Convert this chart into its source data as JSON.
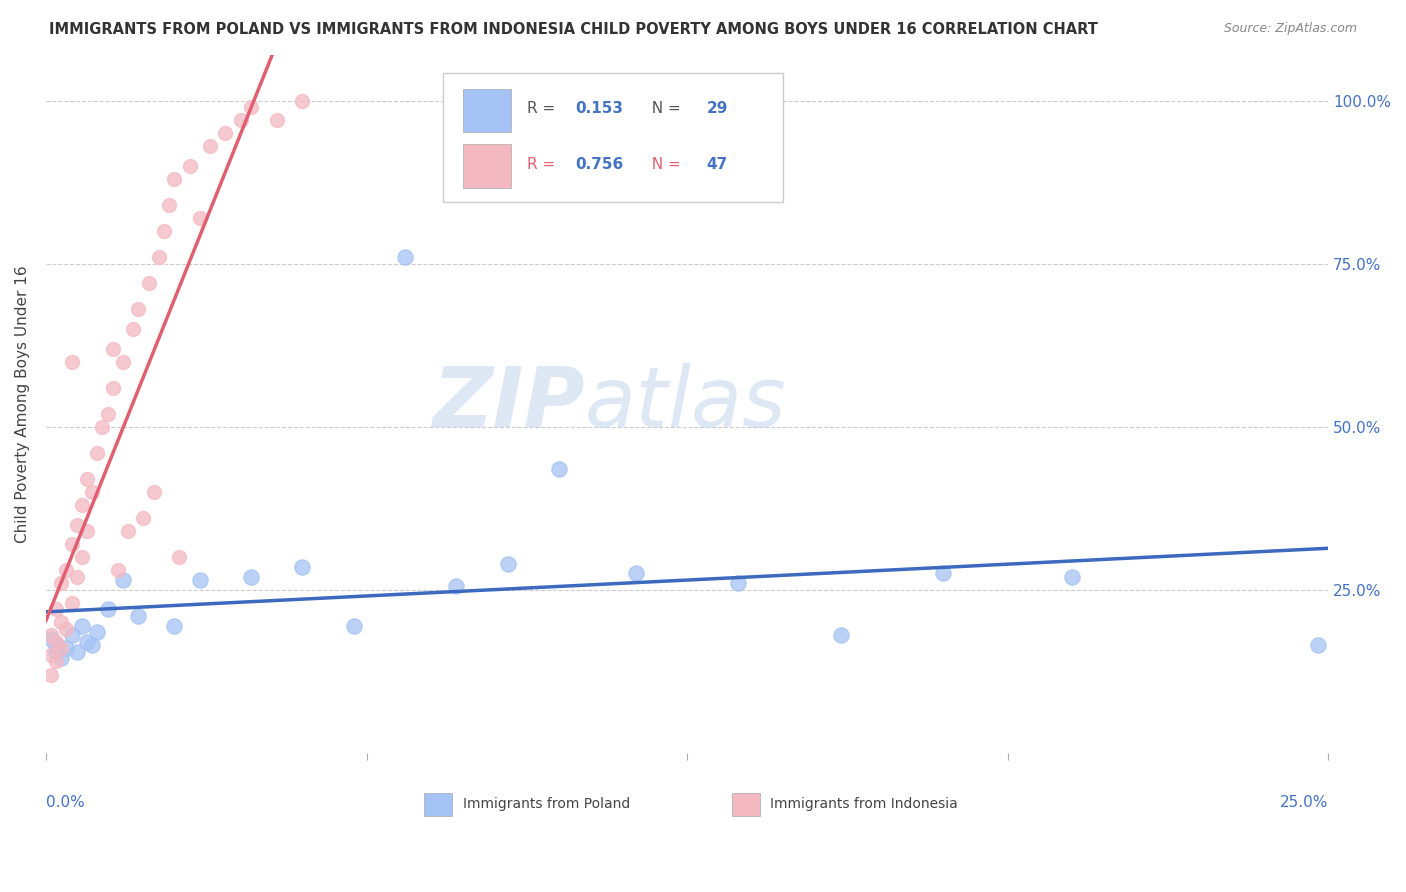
{
  "title": "IMMIGRANTS FROM POLAND VS IMMIGRANTS FROM INDONESIA CHILD POVERTY AMONG BOYS UNDER 16 CORRELATION CHART",
  "source": "Source: ZipAtlas.com",
  "ylabel_label": "Child Poverty Among Boys Under 16",
  "legend_poland": "Immigrants from Poland",
  "legend_indonesia": "Immigrants from Indonesia",
  "R_poland": "0.153",
  "N_poland": "29",
  "R_indonesia": "0.756",
  "N_indonesia": "47",
  "color_poland": "#a4c2f4",
  "color_indonesia": "#f4b8c1",
  "color_poland_line": "#3c6abf",
  "color_indonesia_line": "#e06070",
  "watermark_zip": "ZIP",
  "watermark_atlas": "atlas",
  "poland_x": [
    0.001,
    0.002,
    0.002,
    0.003,
    0.004,
    0.005,
    0.006,
    0.007,
    0.008,
    0.009,
    0.01,
    0.012,
    0.015,
    0.018,
    0.025,
    0.03,
    0.04,
    0.05,
    0.06,
    0.07,
    0.08,
    0.09,
    0.1,
    0.115,
    0.135,
    0.155,
    0.175,
    0.2,
    0.248
  ],
  "poland_y": [
    0.175,
    0.155,
    0.165,
    0.145,
    0.16,
    0.18,
    0.155,
    0.195,
    0.17,
    0.165,
    0.185,
    0.22,
    0.265,
    0.21,
    0.195,
    0.265,
    0.27,
    0.285,
    0.195,
    0.76,
    0.255,
    0.29,
    0.435,
    0.275,
    0.26,
    0.18,
    0.275,
    0.27,
    0.165
  ],
  "indonesia_x": [
    0.001,
    0.001,
    0.001,
    0.002,
    0.002,
    0.002,
    0.003,
    0.003,
    0.003,
    0.004,
    0.004,
    0.005,
    0.005,
    0.005,
    0.006,
    0.006,
    0.007,
    0.007,
    0.008,
    0.008,
    0.009,
    0.01,
    0.011,
    0.012,
    0.013,
    0.013,
    0.014,
    0.015,
    0.016,
    0.017,
    0.018,
    0.019,
    0.02,
    0.021,
    0.022,
    0.023,
    0.024,
    0.025,
    0.026,
    0.028,
    0.03,
    0.032,
    0.035,
    0.038,
    0.04,
    0.045,
    0.05
  ],
  "indonesia_y": [
    0.12,
    0.15,
    0.18,
    0.14,
    0.17,
    0.22,
    0.16,
    0.2,
    0.26,
    0.19,
    0.28,
    0.23,
    0.32,
    0.6,
    0.27,
    0.35,
    0.3,
    0.38,
    0.34,
    0.42,
    0.4,
    0.46,
    0.5,
    0.52,
    0.56,
    0.62,
    0.28,
    0.6,
    0.34,
    0.65,
    0.68,
    0.36,
    0.72,
    0.4,
    0.76,
    0.8,
    0.84,
    0.88,
    0.3,
    0.9,
    0.82,
    0.93,
    0.95,
    0.97,
    0.99,
    0.97,
    1.0
  ],
  "xlim": [
    0.0,
    0.25
  ],
  "ylim": [
    0.0,
    1.07
  ],
  "yticks": [
    0.0,
    0.25,
    0.5,
    0.75,
    1.0
  ],
  "ytick_labels_right": [
    "25.0%",
    "50.0%",
    "75.0%",
    "100.0%"
  ],
  "grid_color": "#cccccc"
}
